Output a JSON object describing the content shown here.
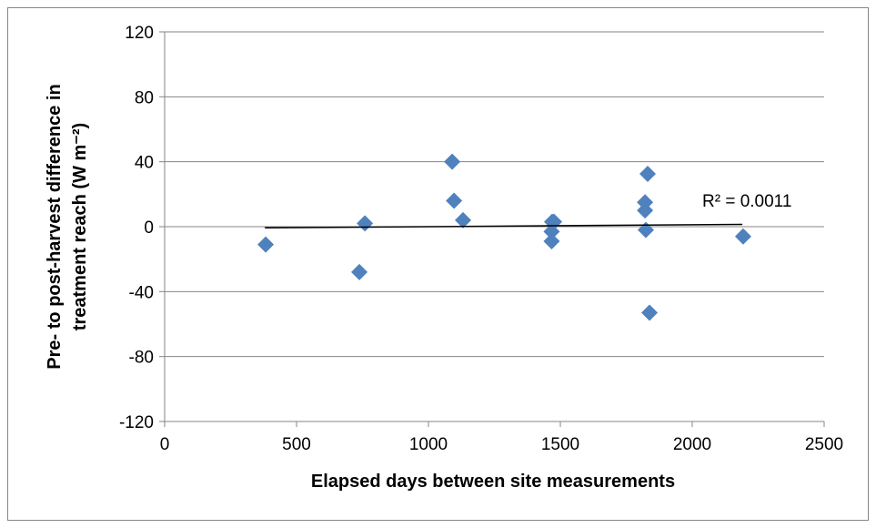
{
  "chart_data": {
    "type": "scatter",
    "x_label": "Elapsed days between site measurements",
    "y_label": [
      "Pre- to post-harvest difference in",
      "treatment reach (W m⁻²)"
    ],
    "x": [
      383,
      738,
      759,
      1090,
      1097,
      1131,
      1469,
      1467,
      1467,
      1476,
      1831,
      1821,
      1821,
      1824,
      1838,
      2193
    ],
    "values": [
      -11,
      -28,
      2,
      40,
      16,
      4,
      3,
      -3,
      -9,
      3,
      32.5,
      15,
      10,
      -2,
      -53,
      -6
    ],
    "color": "#4f81bd",
    "xlim": [
      0,
      2500
    ],
    "xticks": [
      0,
      500,
      1000,
      1500,
      2000,
      2500
    ],
    "ylim": [
      -120,
      120
    ],
    "yticks": [
      -120,
      -80,
      -40,
      0,
      40,
      80,
      120
    ],
    "grid": true,
    "trendline": {
      "x": [
        380,
        2190
      ],
      "y": [
        -0.7,
        1.4
      ],
      "color": "#000000",
      "label": "R² = 0.0011"
    }
  }
}
